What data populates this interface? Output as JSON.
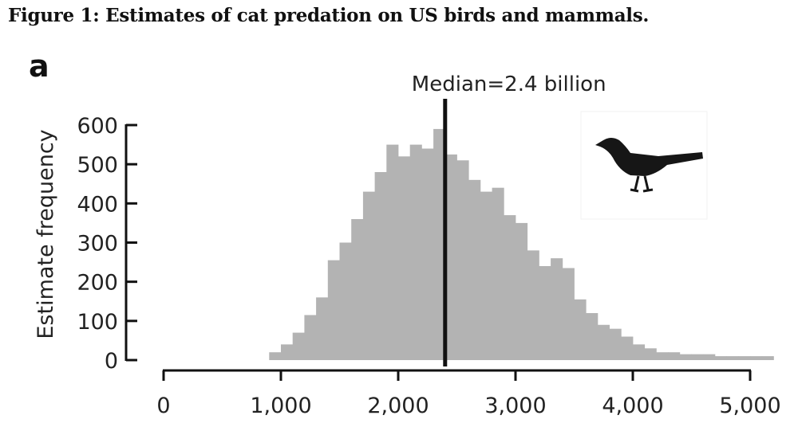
{
  "figure": {
    "caption": "Figure 1: Estimates of cat predation on US birds and mammals."
  },
  "chart_data": {
    "type": "bar",
    "panel_label": "a",
    "ylabel": "Estimate frequency",
    "xlabel": "",
    "x_ticks": [
      "0",
      "1,000",
      "2,000",
      "3,000",
      "4,000",
      "5,000"
    ],
    "x_tick_values": [
      0,
      1000,
      2000,
      3000,
      4000,
      5000
    ],
    "y_ticks": [
      "0",
      "100",
      "200",
      "300",
      "400",
      "500",
      "600"
    ],
    "y_tick_values": [
      0,
      100,
      200,
      300,
      400,
      500,
      600
    ],
    "xlim": [
      0,
      5200
    ],
    "ylim": [
      0,
      600
    ],
    "bin_width": 100,
    "bins_start": [
      900,
      1000,
      1100,
      1200,
      1300,
      1400,
      1500,
      1600,
      1700,
      1800,
      1900,
      2000,
      2100,
      2200,
      2300,
      2400,
      2500,
      2600,
      2700,
      2800,
      2900,
      3000,
      3100,
      3200,
      3300,
      3400,
      3500,
      3600,
      3700,
      3800,
      3900,
      4000,
      4100,
      4200,
      4300,
      4400,
      4500,
      4600,
      4700,
      4800,
      4900,
      5000,
      5100
    ],
    "values": [
      20,
      40,
      70,
      115,
      160,
      255,
      300,
      360,
      430,
      480,
      550,
      520,
      550,
      540,
      590,
      525,
      510,
      460,
      430,
      440,
      370,
      350,
      280,
      240,
      260,
      235,
      155,
      120,
      90,
      80,
      60,
      40,
      30,
      20,
      20,
      15,
      15,
      15,
      10,
      10,
      10,
      10,
      10
    ],
    "median": 2400,
    "median_label": "Median=2.4 billion",
    "bar_color": "#b3b3b3",
    "median_color": "#111111",
    "grid": false,
    "icon": "bird-silhouette-icon"
  }
}
